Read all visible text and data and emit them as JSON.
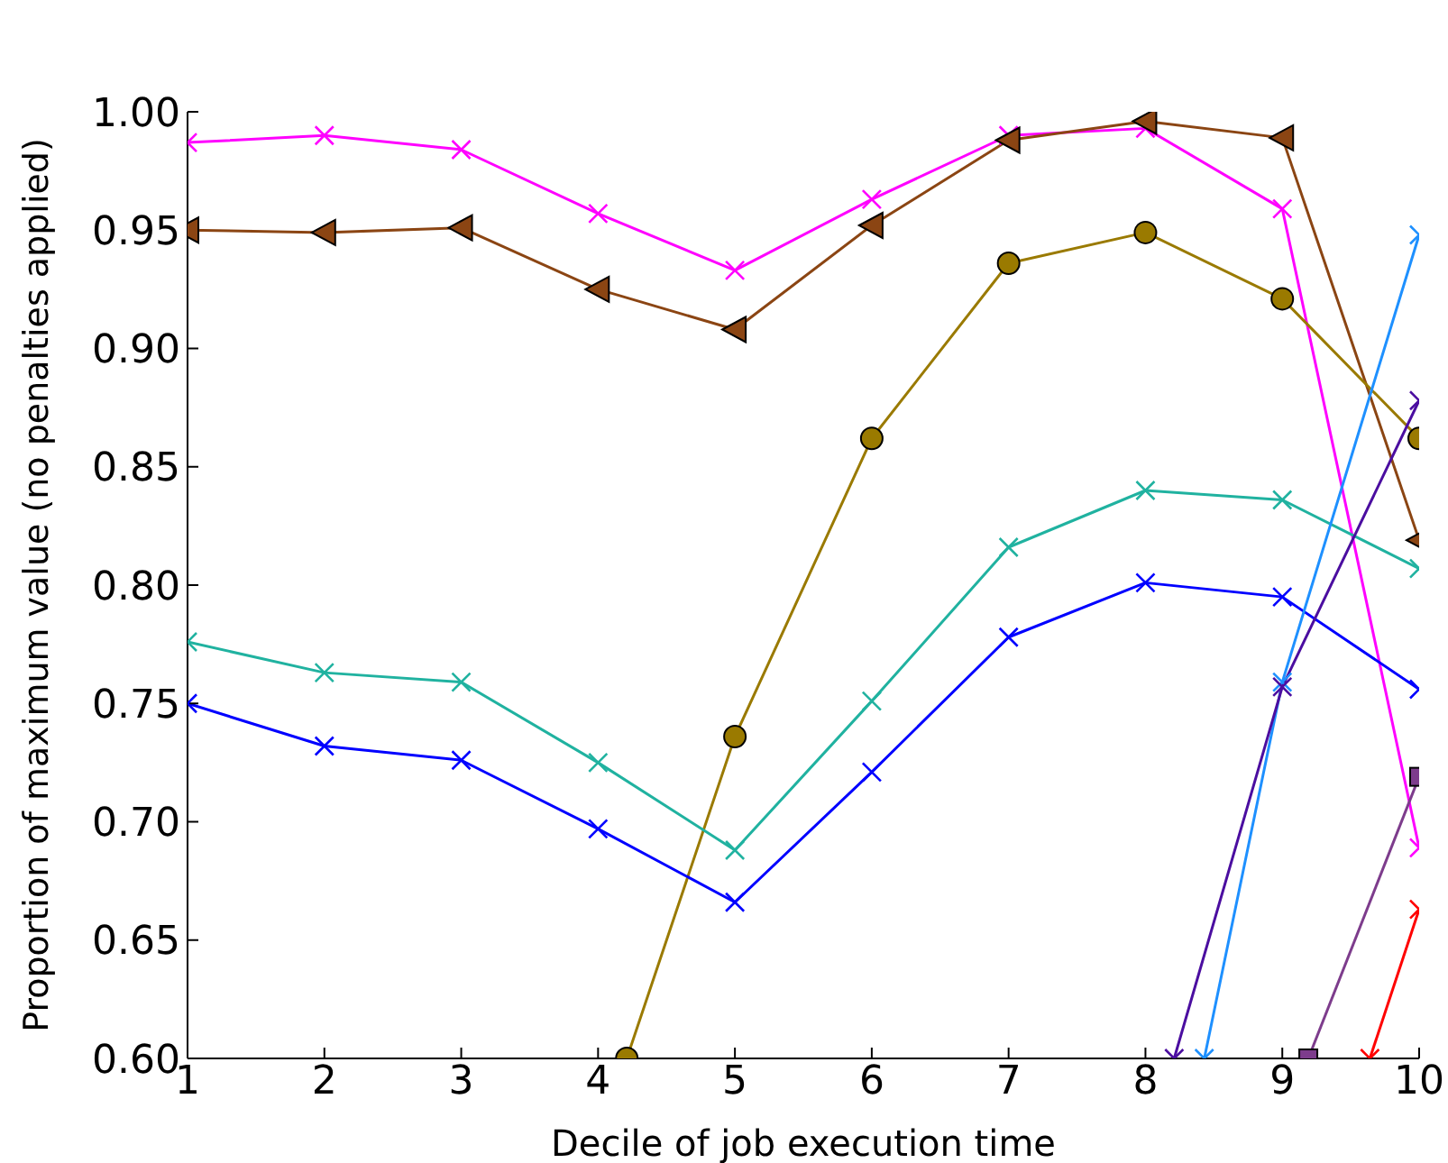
{
  "chart_data": {
    "type": "line",
    "xlabel": "Decile of job execution time",
    "ylabel": "Proportion of maximum value (no penalties applied)",
    "x": [
      1,
      2,
      3,
      4,
      5,
      6,
      7,
      8,
      9,
      10
    ],
    "xlim": [
      1,
      10
    ],
    "xticks": [
      1,
      2,
      3,
      4,
      5,
      6,
      7,
      8,
      9,
      10
    ],
    "ylim": [
      0.6,
      1.0
    ],
    "yticks": [
      {
        "value": 0.6,
        "label": "0.60"
      },
      {
        "value": 0.65,
        "label": "0.65"
      },
      {
        "value": 0.7,
        "label": "0.70"
      },
      {
        "value": 0.75,
        "label": "0.75"
      },
      {
        "value": 0.8,
        "label": "0.80"
      },
      {
        "value": 0.85,
        "label": "0.85"
      },
      {
        "value": 0.9,
        "label": "0.90"
      },
      {
        "value": 0.95,
        "label": "0.95"
      },
      {
        "value": 1.0,
        "label": "1.00"
      }
    ],
    "series": [
      {
        "color": "#ff00ff",
        "marker": "cross",
        "values": [
          0.987,
          0.99,
          0.984,
          0.957,
          0.933,
          0.963,
          0.99,
          0.993,
          0.959,
          0.689
        ]
      },
      {
        "color": "#8b4513",
        "marker": "triangle",
        "values": [
          0.95,
          0.949,
          0.951,
          0.925,
          0.908,
          0.952,
          0.988,
          0.996,
          0.989,
          0.819
        ]
      },
      {
        "color": "#9a7a00",
        "marker": "circle",
        "x": [
          4.21,
          5,
          6,
          7,
          8,
          9,
          10
        ],
        "values": [
          0.6,
          0.736,
          0.862,
          0.936,
          0.949,
          0.921,
          0.862
        ]
      },
      {
        "color": "#20b2a0",
        "marker": "cross",
        "values": [
          0.776,
          0.763,
          0.759,
          0.725,
          0.688,
          0.751,
          0.816,
          0.84,
          0.836,
          0.807
        ]
      },
      {
        "color": "#0000ff",
        "marker": "cross",
        "values": [
          0.75,
          0.732,
          0.726,
          0.697,
          0.666,
          0.721,
          0.778,
          0.801,
          0.795,
          0.756
        ]
      },
      {
        "color": "#1e90ff",
        "marker": "cross",
        "x": [
          8.43,
          9,
          10
        ],
        "values": [
          0.6,
          0.759,
          0.948
        ]
      },
      {
        "color": "#4b0ea0",
        "marker": "cross",
        "x": [
          8.21,
          9,
          10
        ],
        "values": [
          0.6,
          0.757,
          0.878
        ]
      },
      {
        "color": "#7d3c8c",
        "marker": "square",
        "x": [
          9.19,
          10
        ],
        "values": [
          0.6,
          0.719
        ]
      },
      {
        "color": "#ff0000",
        "marker": "cross",
        "x": [
          9.64,
          10
        ],
        "values": [
          0.6,
          0.663
        ]
      }
    ]
  }
}
